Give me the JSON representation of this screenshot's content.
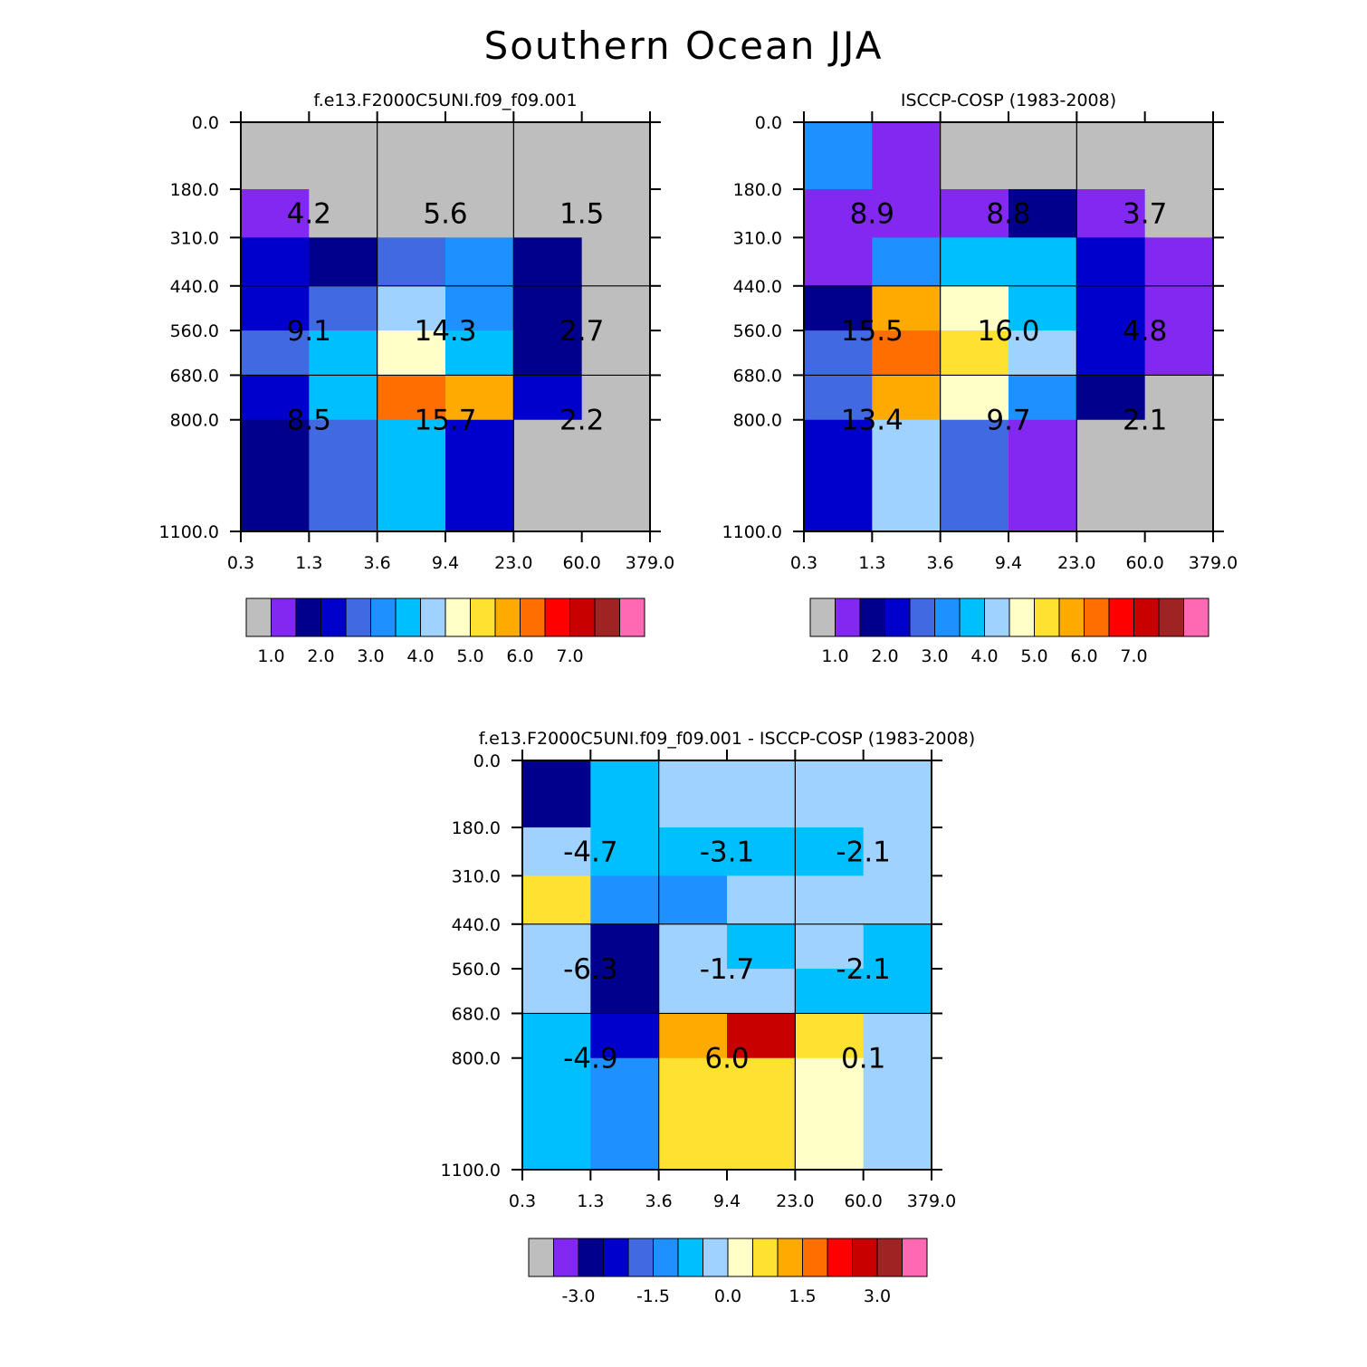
{
  "title": "Southern Ocean JJA",
  "x_tick_labels": [
    "0.3",
    "1.3",
    "3.6",
    "9.4",
    "23.0",
    "60.0",
    "379.0"
  ],
  "y_tick_labels": [
    "0.0",
    "180.0",
    "310.0",
    "440.0",
    "560.0",
    "680.0",
    "800.0",
    "1100.0"
  ],
  "colors": {
    "palette": [
      "#bebebe",
      "#8228f0",
      "#00008c",
      "#0000cd",
      "#4169e1",
      "#1e90ff",
      "#00bfff",
      "#a0d2ff",
      "#ffffc8",
      "#ffe132",
      "#ffaa00",
      "#ff6e00",
      "#ff0000",
      "#c80000",
      "#a02323",
      "#ff69b4"
    ]
  },
  "chart_data": [
    {
      "type": "heatmap",
      "title": "f.e13.F2000C5UNI.f09_f09.001",
      "x_bins": [
        "0.3",
        "1.3",
        "3.6",
        "9.4",
        "23.0",
        "60.0",
        "379.0"
      ],
      "y_bins": [
        "0.0",
        "180.0",
        "310.0",
        "440.0",
        "560.0",
        "680.0",
        "800.0",
        "1100.0"
      ],
      "cell_color_index": [
        [
          0,
          0,
          0,
          0,
          0,
          0
        ],
        [
          1,
          0,
          0,
          0,
          0,
          0
        ],
        [
          3,
          2,
          4,
          5,
          2,
          0
        ],
        [
          3,
          4,
          7,
          5,
          2,
          0
        ],
        [
          4,
          6,
          8,
          6,
          2,
          0
        ],
        [
          3,
          6,
          11,
          10,
          3,
          0
        ],
        [
          2,
          4,
          6,
          3,
          0,
          0
        ]
      ],
      "box_values": [
        [
          "4.2",
          "5.6",
          "1.5"
        ],
        [
          "9.1",
          "14.3",
          "2.7"
        ],
        [
          "8.5",
          "15.7",
          "2.2"
        ]
      ],
      "colorbar": {
        "labels": [
          "1.0",
          "2.0",
          "3.0",
          "4.0",
          "5.0",
          "6.0",
          "7.0"
        ],
        "label_box_index": [
          1,
          3,
          5,
          7,
          9,
          11,
          13
        ]
      }
    },
    {
      "type": "heatmap",
      "title": "ISCCP-COSP (1983-2008)",
      "x_bins": [
        "0.3",
        "1.3",
        "3.6",
        "9.4",
        "23.0",
        "60.0",
        "379.0"
      ],
      "y_bins": [
        "0.0",
        "180.0",
        "310.0",
        "440.0",
        "560.0",
        "680.0",
        "800.0",
        "1100.0"
      ],
      "cell_color_index": [
        [
          5,
          1,
          0,
          0,
          0,
          0
        ],
        [
          1,
          1,
          1,
          2,
          1,
          0
        ],
        [
          1,
          5,
          6,
          6,
          3,
          1
        ],
        [
          2,
          10,
          8,
          6,
          3,
          1
        ],
        [
          4,
          11,
          9,
          7,
          3,
          1
        ],
        [
          4,
          10,
          8,
          5,
          2,
          0
        ],
        [
          3,
          7,
          4,
          1,
          0,
          0
        ]
      ],
      "box_values": [
        [
          "8.9",
          "8.8",
          "3.7"
        ],
        [
          "15.5",
          "16.0",
          "4.8"
        ],
        [
          "13.4",
          "9.7",
          "2.1"
        ]
      ],
      "colorbar": {
        "labels": [
          "1.0",
          "2.0",
          "3.0",
          "4.0",
          "5.0",
          "6.0",
          "7.0"
        ],
        "label_box_index": [
          1,
          3,
          5,
          7,
          9,
          11,
          13
        ]
      }
    },
    {
      "type": "heatmap",
      "title": "f.e13.F2000C5UNI.f09_f09.001 - ISCCP-COSP (1983-2008)",
      "x_bins": [
        "0.3",
        "1.3",
        "3.6",
        "9.4",
        "23.0",
        "60.0",
        "379.0"
      ],
      "y_bins": [
        "0.0",
        "180.0",
        "310.0",
        "440.0",
        "560.0",
        "680.0",
        "800.0",
        "1100.0"
      ],
      "cell_color_index": [
        [
          2,
          6,
          7,
          7,
          7,
          7
        ],
        [
          7,
          6,
          6,
          6,
          6,
          7
        ],
        [
          9,
          5,
          5,
          7,
          7,
          7
        ],
        [
          7,
          2,
          7,
          6,
          7,
          6
        ],
        [
          7,
          2,
          7,
          7,
          6,
          6
        ],
        [
          6,
          3,
          10,
          13,
          9,
          7
        ],
        [
          6,
          5,
          9,
          9,
          8,
          7
        ]
      ],
      "box_values": [
        [
          "-4.7",
          "-3.1",
          "-2.1"
        ],
        [
          "-6.3",
          "-1.7",
          "-2.1"
        ],
        [
          "-4.9",
          "6.0",
          "0.1"
        ]
      ],
      "colorbar": {
        "labels": [
          "-3.0",
          "-1.5",
          "0.0",
          "1.5",
          "3.0"
        ],
        "label_box_index": [
          2,
          5,
          8,
          11,
          14
        ]
      }
    }
  ]
}
